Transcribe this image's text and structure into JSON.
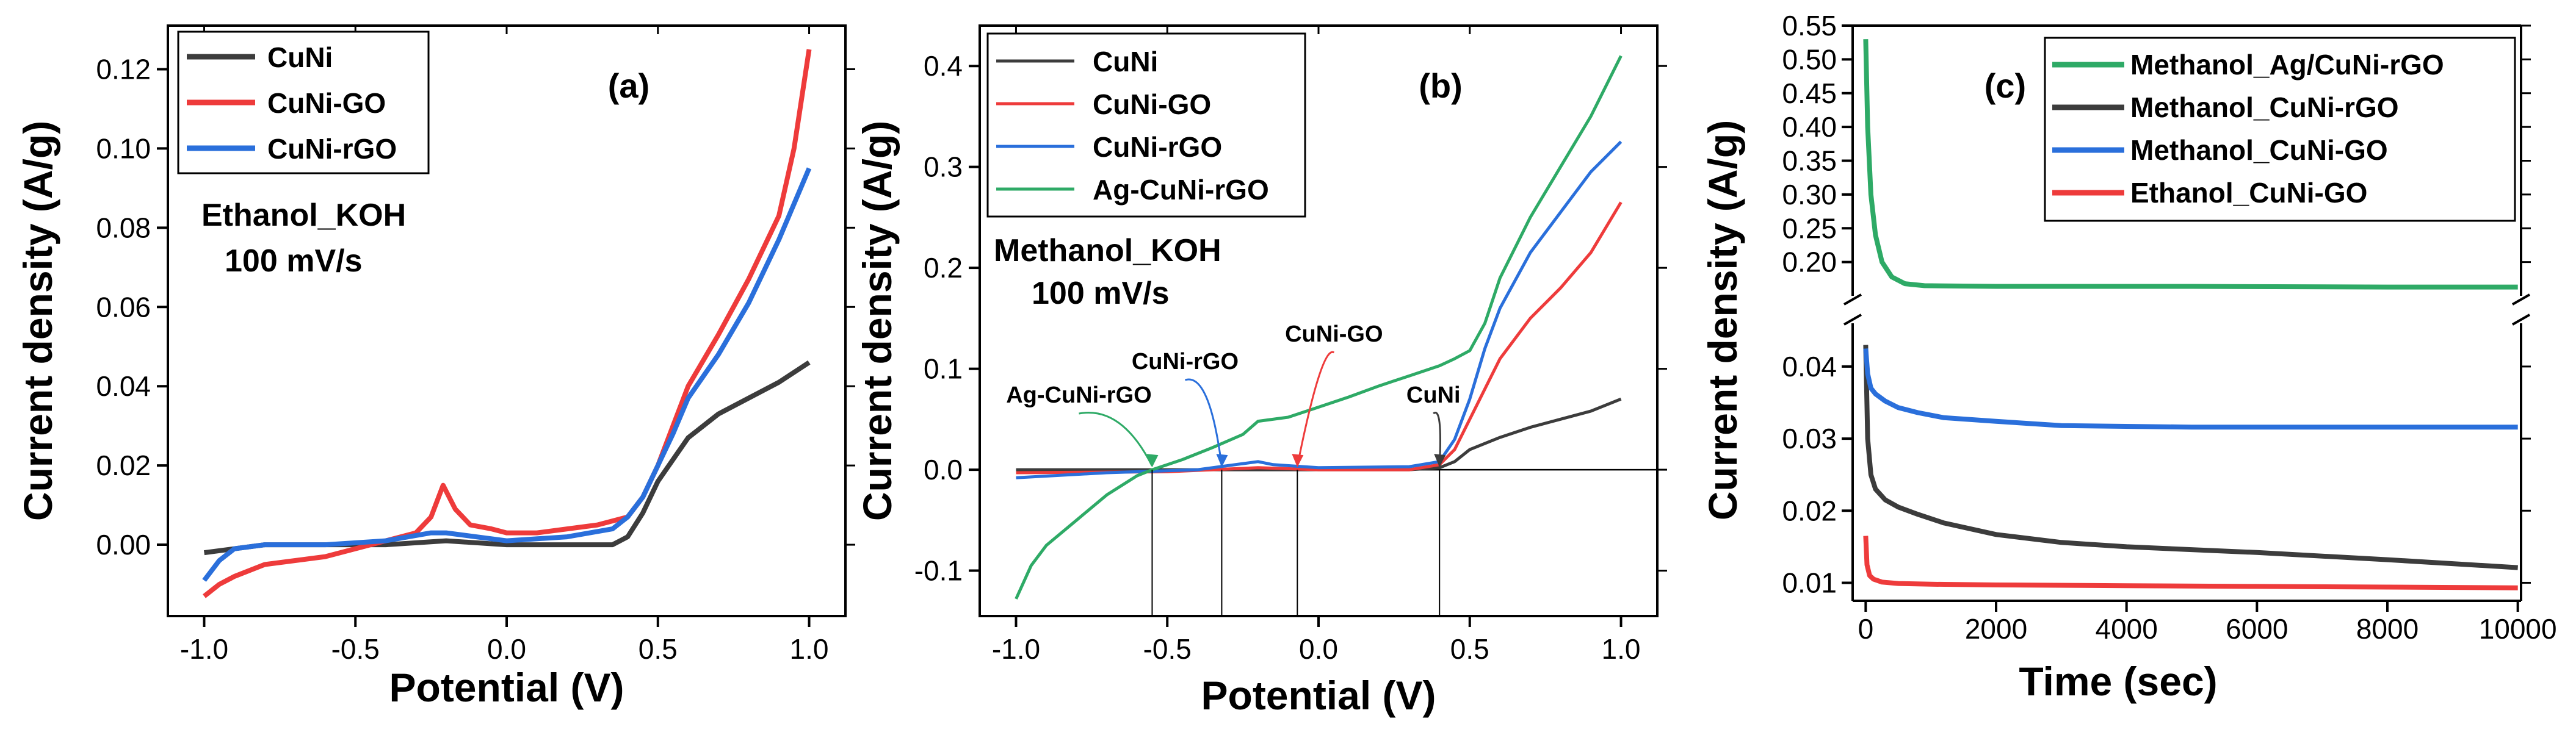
{
  "colors": {
    "black": "#3c3c3c",
    "red": "#ee3b3b",
    "blue": "#2a6fdb",
    "green": "#2eaa66",
    "axis": "#000000"
  },
  "chart_data": [
    {
      "type": "line",
      "panel_label": "(a)",
      "xlabel": "Potential (V)",
      "ylabel": "Current density (A/g)",
      "xlim": [
        -1.12,
        1.12
      ],
      "ylim": [
        -0.018,
        0.131
      ],
      "xticks": [
        -1.0,
        -0.5,
        0.0,
        0.5,
        1.0
      ],
      "xtick_labels": [
        "-1.0",
        "-0.5",
        "0.0",
        "0.5",
        "1.0"
      ],
      "yticks": [
        0.0,
        0.02,
        0.04,
        0.06,
        0.08,
        0.1,
        0.12
      ],
      "ytick_labels": [
        "0.00",
        "0.02",
        "0.04",
        "0.06",
        "0.08",
        "0.10",
        "0.12"
      ],
      "annotation": [
        "Ethanol_KOH",
        "100 mV/s"
      ],
      "series": [
        {
          "name": "CuNi",
          "color": "#3c3c3c",
          "x": [
            -1.0,
            -0.9,
            -0.8,
            -0.6,
            -0.4,
            -0.2,
            0.0,
            0.2,
            0.35,
            0.4,
            0.45,
            0.5,
            0.6,
            0.7,
            0.8,
            0.9,
            1.0
          ],
          "y": [
            -0.002,
            -0.001,
            0.0,
            0.0,
            0.0,
            0.001,
            0.0,
            0.0,
            0.0,
            0.002,
            0.008,
            0.016,
            0.027,
            0.033,
            0.037,
            0.041,
            0.046
          ]
        },
        {
          "name": "CuNi-GO",
          "color": "#ee3b3b",
          "x": [
            -1.0,
            -0.95,
            -0.9,
            -0.8,
            -0.6,
            -0.4,
            -0.3,
            -0.25,
            -0.21,
            -0.17,
            -0.12,
            -0.05,
            0.0,
            0.1,
            0.2,
            0.3,
            0.4,
            0.45,
            0.5,
            0.55,
            0.6,
            0.7,
            0.8,
            0.9,
            0.95,
            1.0
          ],
          "y": [
            -0.013,
            -0.01,
            -0.008,
            -0.005,
            -0.003,
            0.001,
            0.003,
            0.007,
            0.015,
            0.009,
            0.005,
            0.004,
            0.003,
            0.003,
            0.004,
            0.005,
            0.007,
            0.012,
            0.02,
            0.03,
            0.04,
            0.053,
            0.067,
            0.083,
            0.1,
            0.125
          ]
        },
        {
          "name": "CuNi-rGO",
          "color": "#2a6fdb",
          "x": [
            -1.0,
            -0.95,
            -0.9,
            -0.8,
            -0.6,
            -0.4,
            -0.25,
            -0.2,
            -0.1,
            0.0,
            0.2,
            0.35,
            0.4,
            0.45,
            0.5,
            0.55,
            0.6,
            0.7,
            0.8,
            0.9,
            1.0
          ],
          "y": [
            -0.009,
            -0.004,
            -0.001,
            0.0,
            0.0,
            0.001,
            0.003,
            0.003,
            0.002,
            0.001,
            0.002,
            0.004,
            0.007,
            0.012,
            0.02,
            0.028,
            0.037,
            0.048,
            0.061,
            0.077,
            0.095
          ]
        }
      ]
    },
    {
      "type": "line",
      "panel_label": "(b)",
      "xlabel": "Potential (V)",
      "ylabel": "Current density (A/g)",
      "xlim": [
        -1.12,
        1.12
      ],
      "ylim": [
        -0.145,
        0.44
      ],
      "xticks": [
        -1.0,
        -0.5,
        0.0,
        0.5,
        1.0
      ],
      "xtick_labels": [
        "-1.0",
        "-0.5",
        "0.0",
        "0.5",
        "1.0"
      ],
      "yticks": [
        -0.1,
        0.0,
        0.1,
        0.2,
        0.3,
        0.4
      ],
      "ytick_labels": [
        "-0.1",
        "0.0",
        "0.1",
        "0.2",
        "0.3",
        "0.4"
      ],
      "annotation": [
        "Methanol_KOH",
        "100 mV/s"
      ],
      "onset_labels": [
        {
          "text": "Ag-CuNi-rGO",
          "x": -0.55,
          "color": "#2eaa66"
        },
        {
          "text": "CuNi-rGO",
          "x": -0.32,
          "color": "#2a6fdb"
        },
        {
          "text": "CuNi-GO",
          "x": -0.07,
          "color": "#ee3b3b"
        },
        {
          "text": "CuNi",
          "x": 0.4,
          "color": "#3c3c3c"
        }
      ],
      "series": [
        {
          "name": "CuNi",
          "color": "#3c3c3c",
          "x": [
            -1.0,
            -0.6,
            -0.3,
            0.0,
            0.3,
            0.4,
            0.45,
            0.5,
            0.6,
            0.7,
            0.8,
            0.9,
            1.0
          ],
          "y": [
            0.0,
            0.0,
            0.0,
            0.0,
            0.0,
            0.002,
            0.008,
            0.02,
            0.032,
            0.042,
            0.05,
            0.058,
            0.07
          ]
        },
        {
          "name": "CuNi-GO",
          "color": "#ee3b3b",
          "x": [
            -1.0,
            -0.5,
            -0.2,
            0.0,
            0.3,
            0.4,
            0.45,
            0.5,
            0.55,
            0.6,
            0.7,
            0.8,
            0.9,
            1.0
          ],
          "y": [
            -0.003,
            -0.002,
            0.002,
            0.0,
            0.0,
            0.005,
            0.02,
            0.05,
            0.08,
            0.11,
            0.15,
            0.18,
            0.215,
            0.265
          ]
        },
        {
          "name": "CuNi-rGO",
          "color": "#2a6fdb",
          "x": [
            -1.0,
            -0.7,
            -0.4,
            -0.25,
            -0.2,
            -0.15,
            0.0,
            0.3,
            0.4,
            0.45,
            0.5,
            0.55,
            0.6,
            0.7,
            0.8,
            0.9,
            1.0
          ],
          "y": [
            -0.008,
            -0.003,
            0.0,
            0.006,
            0.008,
            0.005,
            0.002,
            0.003,
            0.008,
            0.03,
            0.07,
            0.12,
            0.16,
            0.215,
            0.255,
            0.295,
            0.325
          ]
        },
        {
          "name": "Ag-CuNi-rGO",
          "color": "#2eaa66",
          "x": [
            -1.0,
            -0.95,
            -0.9,
            -0.8,
            -0.7,
            -0.6,
            -0.55,
            -0.45,
            -0.35,
            -0.25,
            -0.2,
            -0.1,
            0.0,
            0.1,
            0.2,
            0.3,
            0.4,
            0.45,
            0.5,
            0.55,
            0.6,
            0.7,
            0.8,
            0.9,
            1.0
          ],
          "y": [
            -0.128,
            -0.095,
            -0.075,
            -0.05,
            -0.025,
            -0.006,
            0.0,
            0.01,
            0.022,
            0.035,
            0.048,
            0.052,
            0.062,
            0.072,
            0.083,
            0.093,
            0.103,
            0.11,
            0.118,
            0.145,
            0.19,
            0.25,
            0.3,
            0.35,
            0.41
          ]
        }
      ]
    },
    {
      "type": "line",
      "panel_label": "(c)",
      "xlabel": "Time (sec)",
      "ylabel": "Current density (A/g)",
      "xlim": [
        -200,
        10050
      ],
      "broken_y_axis": true,
      "ylim_upper": [
        0.15,
        0.55
      ],
      "ylim_lower": [
        0.0075,
        0.046
      ],
      "xticks": [
        0,
        2000,
        4000,
        6000,
        8000,
        10000
      ],
      "xtick_labels": [
        "0",
        "2000",
        "4000",
        "6000",
        "8000",
        "10000"
      ],
      "yticks_upper": [
        0.2,
        0.25,
        0.3,
        0.35,
        0.4,
        0.45,
        0.5,
        0.55
      ],
      "ytick_labels_upper": [
        "0.20",
        "0.25",
        "0.30",
        "0.35",
        "0.40",
        "0.45",
        "0.50",
        "0.55"
      ],
      "yticks_lower": [
        0.01,
        0.02,
        0.03,
        0.04
      ],
      "ytick_labels_lower": [
        "0.01",
        "0.02",
        "0.03",
        "0.04"
      ],
      "series": [
        {
          "name": "Methanol_Ag/CuNi-rGO",
          "color": "#2eaa66",
          "x": [
            0,
            30,
            80,
            150,
            250,
            400,
            600,
            900,
            2000,
            5000,
            8000,
            10000
          ],
          "y": [
            0.53,
            0.4,
            0.3,
            0.24,
            0.2,
            0.178,
            0.168,
            0.165,
            0.164,
            0.164,
            0.163,
            0.163
          ]
        },
        {
          "name": "Methanol_CuNi-rGO",
          "color": "#3c3c3c",
          "x": [
            0,
            30,
            80,
            150,
            300,
            500,
            800,
            1200,
            2000,
            3000,
            4000,
            6000,
            8000,
            10000
          ],
          "y": [
            0.043,
            0.03,
            0.025,
            0.023,
            0.0215,
            0.0205,
            0.0195,
            0.0183,
            0.0167,
            0.0156,
            0.015,
            0.0142,
            0.0132,
            0.0121
          ]
        },
        {
          "name": "Methanol_CuNi-GO",
          "color": "#2a6fdb",
          "x": [
            0,
            30,
            80,
            150,
            300,
            500,
            800,
            1200,
            2000,
            3000,
            5000,
            8000,
            10000
          ],
          "y": [
            0.0425,
            0.039,
            0.037,
            0.0362,
            0.0352,
            0.0343,
            0.0336,
            0.0329,
            0.0324,
            0.0318,
            0.0316,
            0.0316,
            0.0316
          ]
        },
        {
          "name": "Ethanol_CuNi-GO",
          "color": "#ee3b3b",
          "x": [
            0,
            20,
            60,
            120,
            250,
            500,
            1000,
            2000,
            4000,
            6000,
            8000,
            10000
          ],
          "y": [
            0.0165,
            0.0125,
            0.011,
            0.0105,
            0.0101,
            0.0099,
            0.0098,
            0.0097,
            0.0096,
            0.0095,
            0.0094,
            0.0093
          ]
        }
      ]
    }
  ]
}
